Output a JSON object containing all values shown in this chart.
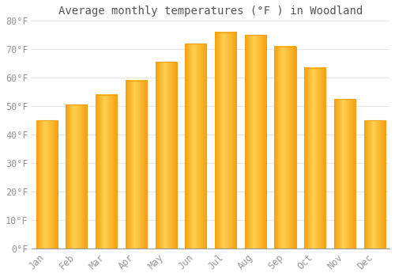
{
  "title": "Average monthly temperatures (°F ) in Woodland",
  "months": [
    "Jan",
    "Feb",
    "Mar",
    "Apr",
    "May",
    "Jun",
    "Jul",
    "Aug",
    "Sep",
    "Oct",
    "Nov",
    "Dec"
  ],
  "values": [
    45,
    50.5,
    54,
    59,
    65.5,
    72,
    76,
    75,
    71,
    63.5,
    52.5,
    45
  ],
  "bar_color_center": "#FFD050",
  "bar_color_edge": "#F5A010",
  "background_color": "#FFFFFF",
  "grid_color": "#E8E8E8",
  "text_color": "#999999",
  "title_color": "#555555",
  "ylim": [
    0,
    80
  ],
  "yticks": [
    0,
    10,
    20,
    30,
    40,
    50,
    60,
    70,
    80
  ],
  "ytick_labels": [
    "0°F",
    "10°F",
    "20°F",
    "30°F",
    "40°F",
    "50°F",
    "60°F",
    "70°F",
    "80°F"
  ],
  "title_fontsize": 10,
  "tick_fontsize": 8.5,
  "bar_width": 0.72
}
